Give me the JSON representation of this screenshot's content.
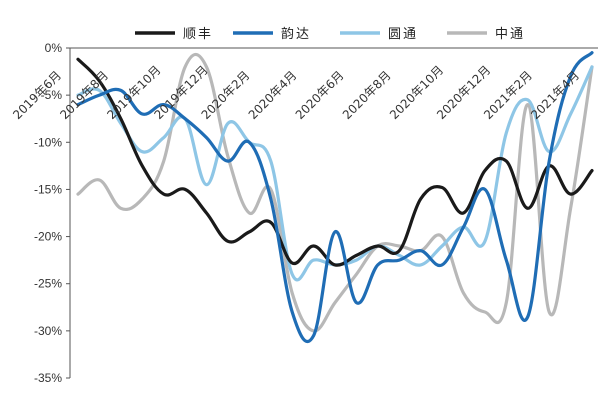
{
  "chart_data": {
    "type": "line",
    "title": "",
    "xlabel": "",
    "ylabel": "",
    "ylim": [
      -35,
      0
    ],
    "y_ticks": [
      0,
      -5,
      -10,
      -15,
      -20,
      -25,
      -30,
      -35
    ],
    "y_tick_labels": [
      "0%",
      "-5%",
      "-10%",
      "-15%",
      "-20%",
      "-25%",
      "-30%",
      "-35%"
    ],
    "grid": false,
    "legend_position": "top",
    "x_axis_position": "top",
    "x_tick_labels": [
      "2019年6月",
      "2019年8月",
      "2019年10月",
      "2019年12月",
      "2020年2月",
      "2020年4月",
      "2020年6月",
      "2020年8月",
      "2020年10月",
      "2020年12月",
      "2021年2月",
      "2021年4月"
    ],
    "x": [
      "2019-05",
      "2019-06",
      "2019-07",
      "2019-08",
      "2019-09",
      "2019-10",
      "2019-11",
      "2019-12",
      "2020-01",
      "2020-02",
      "2020-03",
      "2020-04",
      "2020-05",
      "2020-06",
      "2020-07",
      "2020-08",
      "2020-09",
      "2020-10",
      "2020-11",
      "2020-12",
      "2021-01",
      "2021-02",
      "2021-03",
      "2021-04",
      "2021-05"
    ],
    "series": [
      {
        "name": "顺丰",
        "color": "#1a1a1a",
        "values": [
          -1.2,
          -3.5,
          -7.5,
          -12.5,
          -15.5,
          -15.0,
          -17.5,
          -20.5,
          -19.5,
          -18.5,
          -22.8,
          -21.0,
          -23.0,
          -22.0,
          -21.0,
          -21.5,
          -16.0,
          -14.8,
          -17.5,
          -13.0,
          -12.0,
          -17.0,
          -12.5,
          -15.5,
          -13.0
        ]
      },
      {
        "name": "韵达",
        "color": "#1f6db5",
        "values": [
          -6.0,
          -5.0,
          -4.5,
          -7.0,
          -6.0,
          -7.5,
          -9.5,
          -12.0,
          -10.0,
          -16.0,
          -28.0,
          -30.5,
          -19.5,
          -27.0,
          -23.0,
          -22.5,
          -21.5,
          -23.0,
          -19.0,
          -15.0,
          -22.5,
          -28.5,
          -12.0,
          -3.0,
          -0.5
        ]
      },
      {
        "name": "圆通",
        "color": "#8ec6e6",
        "values": [
          -5.0,
          -4.5,
          -8.0,
          -11.0,
          -9.5,
          -7.5,
          -14.5,
          -8.0,
          -10.0,
          -12.0,
          -24.0,
          -22.5,
          -23.0,
          -22.5,
          -21.0,
          -22.0,
          -23.0,
          -21.0,
          -19.0,
          -20.5,
          -9.0,
          -5.5,
          -11.0,
          -7.0,
          -2.0
        ]
      },
      {
        "name": "中通",
        "color": "#b8b8b8",
        "values": [
          -15.5,
          -14.0,
          -17.0,
          -16.0,
          -12.0,
          -2.0,
          -2.0,
          -11.5,
          -17.5,
          -15.0,
          -26.0,
          -30.0,
          -27.0,
          -24.0,
          -21.0,
          -21.0,
          -21.5,
          -20.0,
          -26.0,
          -28.0,
          -27.0,
          -6.0,
          -28.0,
          -17.0,
          -2.0
        ]
      }
    ]
  }
}
